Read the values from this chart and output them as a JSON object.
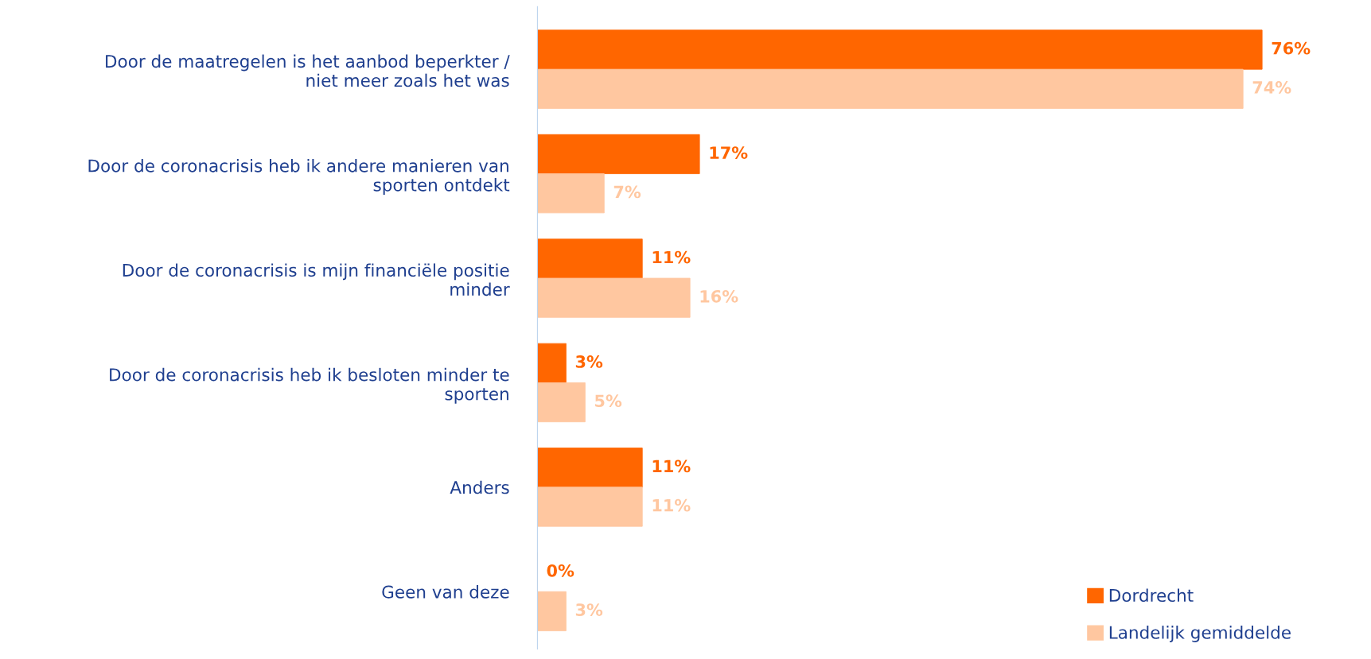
{
  "chart_data": {
    "type": "bar",
    "orientation": "horizontal",
    "categories": [
      "Door de maatregelen is het aanbod beperkter /\nniet meer zoals het was",
      "Door de coronacrisis heb ik andere manieren van\nsporten ontdekt",
      "Door de coronacrisis is mijn financiële positie\nminder",
      "Door de coronacrisis heb ik besloten minder te\nsporten",
      "Anders",
      "Geen van deze"
    ],
    "series": [
      {
        "name": "Dordrecht",
        "color": "#ff6600",
        "values": [
          76,
          17,
          11,
          3,
          11,
          0
        ],
        "value_labels": [
          "76%",
          "17%",
          "11%",
          "3%",
          "11%",
          "0%"
        ]
      },
      {
        "name": "Landelijk gemiddelde",
        "color": "#ffc7a0",
        "values": [
          74,
          7,
          16,
          5,
          11,
          3
        ],
        "value_labels": [
          "74%",
          "7%",
          "16%",
          "5%",
          "11%",
          "3%"
        ]
      }
    ],
    "legend": "bottom right",
    "grid": false,
    "tick_labels": "y"
  }
}
